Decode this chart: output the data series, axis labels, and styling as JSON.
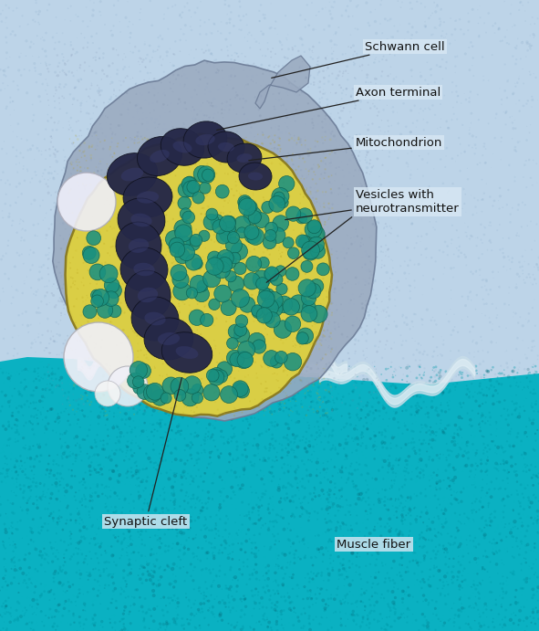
{
  "bg_color": "#bdd4e8",
  "schwann_fill": "#9aaac0",
  "schwann_edge": "#6a7a95",
  "axon_fill": "#ddd040",
  "axon_edge": "#8a7a20",
  "mito_fill": "#252848",
  "mito_edge": "#101220",
  "vesicle_fill": "#1a9080",
  "vesicle_edge": "#0d6050",
  "large_clear_fill": "#f0f0f0",
  "muscle_fill": "#00b0c0",
  "muscle_dark": "#008898",
  "synaptic_membrane": "#d0dde8",
  "label_color": "#111111",
  "figsize": [
    5.91,
    6.91
  ],
  "dpi": 100
}
